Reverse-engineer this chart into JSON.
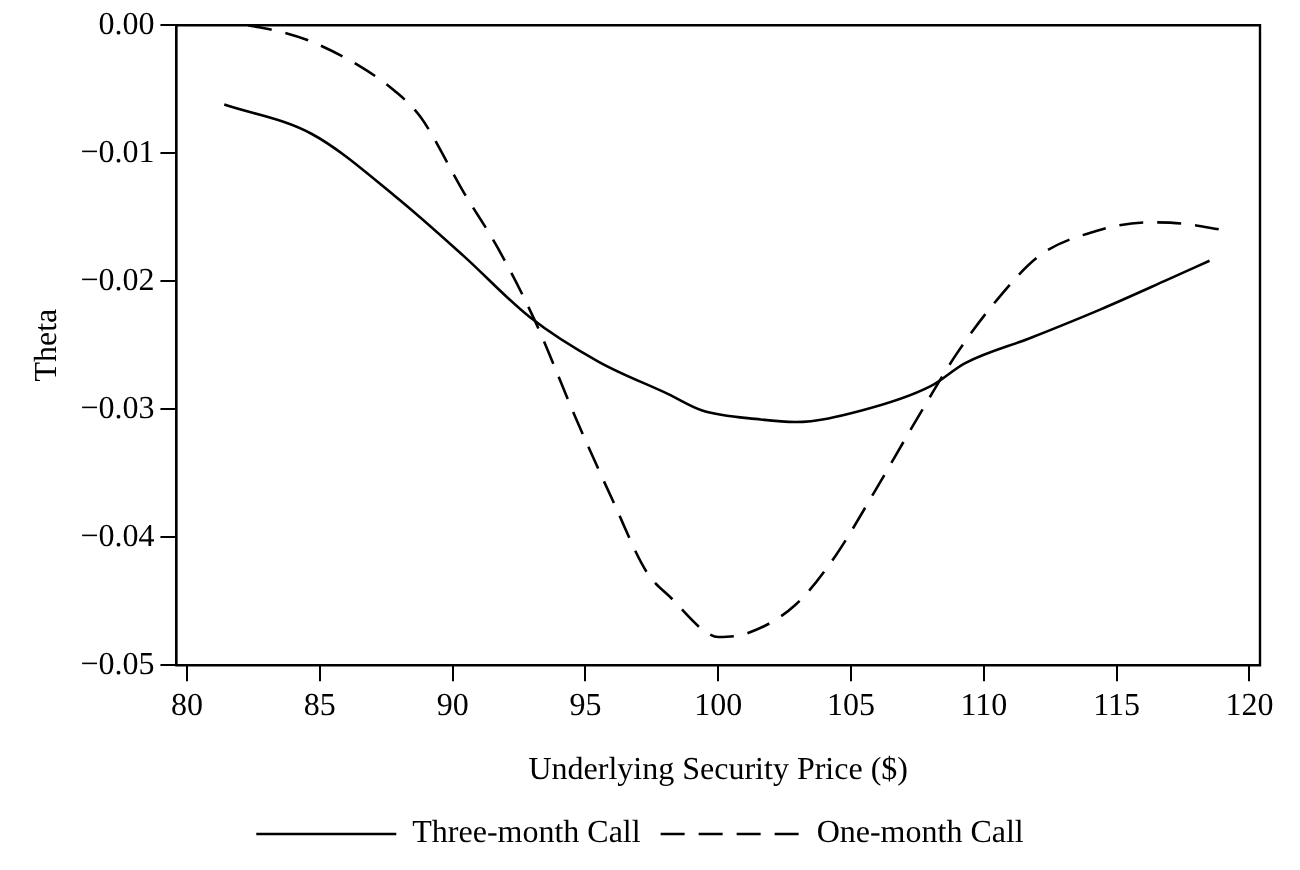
{
  "chart_data": {
    "type": "line",
    "xlabel": "Underlying Security Price ($)",
    "ylabel": "Theta",
    "xlim": [
      79.6,
      120.4
    ],
    "xticks": [
      80,
      85,
      90,
      95,
      100,
      105,
      110,
      115,
      120
    ],
    "ylim": [
      -0.05,
      0
    ],
    "yticks": [
      {
        "value": 0,
        "label": "0.00"
      },
      {
        "value": -0.01,
        "label": "−0.01"
      },
      {
        "value": -0.02,
        "label": "−0.02"
      },
      {
        "value": -0.03,
        "label": "−0.03"
      },
      {
        "value": -0.04,
        "label": "−0.04"
      },
      {
        "value": -0.05,
        "label": "−0.05"
      }
    ],
    "grid": false,
    "legend": "bottom",
    "marker": "none",
    "series": [
      {
        "name": "Three-month Call",
        "color": "#000000",
        "line_style": "solid",
        "x": [
          81.4,
          84.7,
          87.8,
          90.4,
          92.9,
          95.5,
          98.1,
          99.4,
          101.6,
          102.9,
          105.4,
          108,
          109.3,
          111.8,
          114.4,
          116.9,
          118.5
        ],
        "values": [
          -0.0062,
          -0.0085,
          -0.0133,
          -0.018,
          -0.0228,
          -0.0263,
          -0.0288,
          -0.0301,
          -0.0308,
          -0.031,
          -0.0301,
          -0.0282,
          -0.0264,
          -0.0244,
          -0.0222,
          -0.0199,
          -0.0184
        ]
      },
      {
        "name": "One-month Call",
        "color": "#000000",
        "line_style": "dashed",
        "x": [
          82.3,
          83.7,
          84.7,
          86.5,
          87.8,
          88.8,
          90.4,
          91.7,
          93.1,
          94.7,
          96,
          97.3,
          98.3,
          99.4,
          100,
          101.1,
          102.9,
          104.4,
          105.9,
          107.5,
          109,
          110.6,
          112.1,
          114.2,
          116.2,
          117.5,
          119
        ],
        "values": [
          0,
          -0.0006,
          -0.0013,
          -0.0032,
          -0.0051,
          -0.0072,
          -0.013,
          -0.0174,
          -0.0231,
          -0.031,
          -0.037,
          -0.0427,
          -0.0449,
          -0.0472,
          -0.0478,
          -0.0475,
          -0.0453,
          -0.0415,
          -0.0364,
          -0.0307,
          -0.0256,
          -0.0212,
          -0.018,
          -0.0161,
          -0.0154,
          -0.0155,
          -0.016
        ]
      }
    ]
  }
}
